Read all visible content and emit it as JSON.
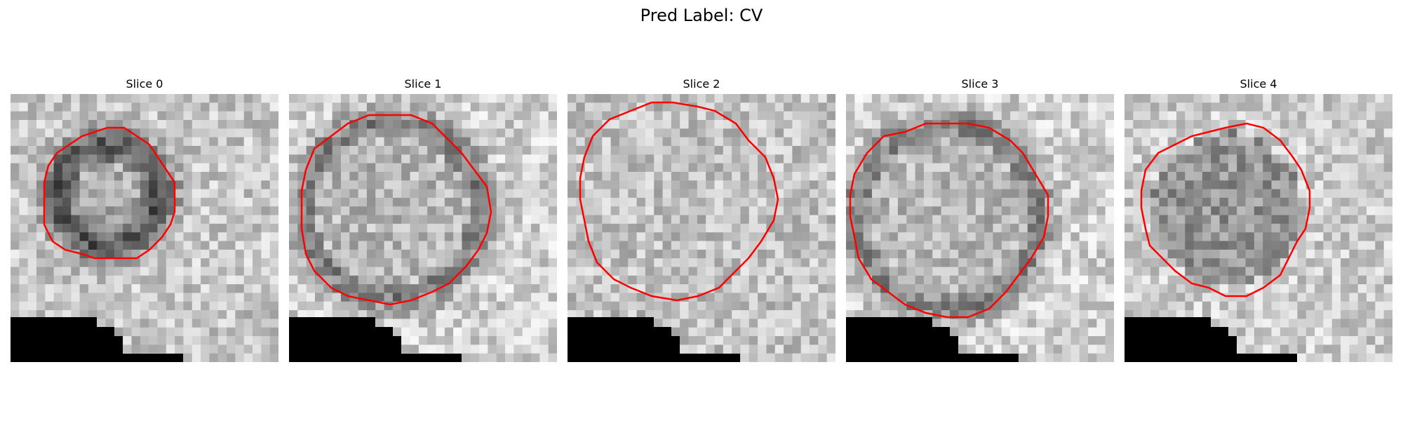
{
  "figure": {
    "title": "Pred Label: CV"
  },
  "panels": [
    {
      "title": "Slice 0",
      "ring": "dark",
      "seed": 11
    },
    {
      "title": "Slice 1",
      "ring": "medium",
      "seed": 23
    },
    {
      "title": "Slice 2",
      "ring": "none",
      "seed": 37
    },
    {
      "title": "Slice 3",
      "ring": "medium",
      "seed": 41
    },
    {
      "title": "Slice 4",
      "ring": "inner",
      "seed": 53
    }
  ],
  "colors": {
    "contour": "#ff0000",
    "background": "#ffffff",
    "mask": "#000000"
  }
}
